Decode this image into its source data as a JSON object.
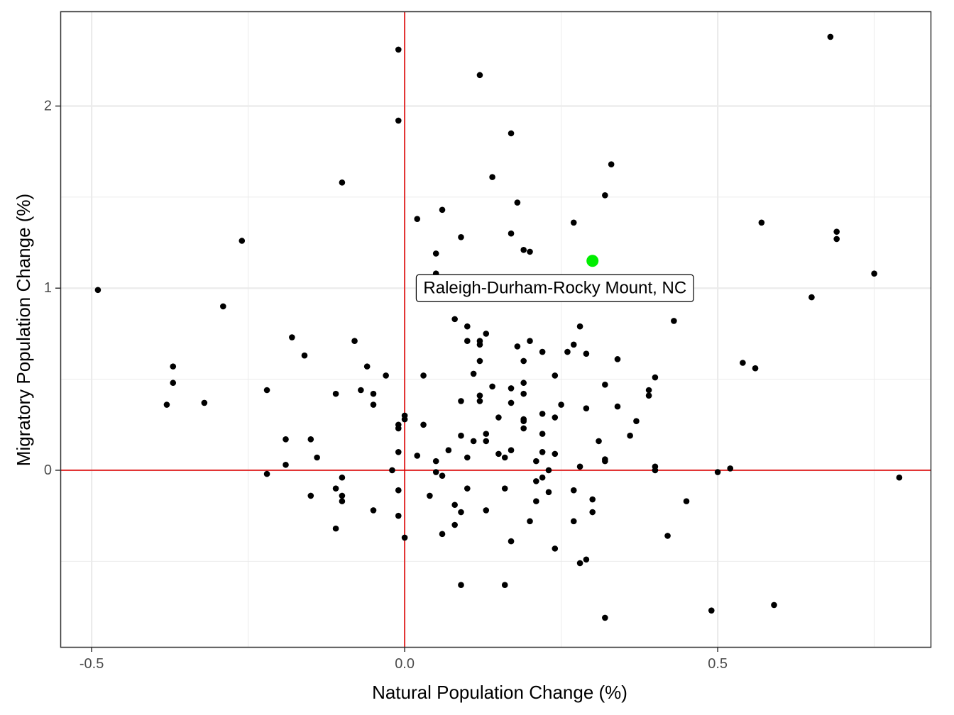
{
  "chart_data": {
    "type": "scatter",
    "title": "",
    "xlabel": "Natural Population Change (%)",
    "ylabel": "Migratory Population Change (%)",
    "xlim": [
      -0.55,
      0.84
    ],
    "ylim": [
      -0.97,
      2.52
    ],
    "x_ticks": [
      {
        "value": -0.5,
        "label": "-0.5"
      },
      {
        "value": 0.0,
        "label": "0.0"
      },
      {
        "value": 0.5,
        "label": "0.5"
      }
    ],
    "y_ticks": [
      {
        "value": 0,
        "label": "0"
      },
      {
        "value": 1,
        "label": "1"
      },
      {
        "value": 2,
        "label": "2"
      }
    ],
    "x_minor": [
      -0.25,
      0.25,
      0.75
    ],
    "y_minor": [
      -0.5,
      0.5,
      1.5
    ],
    "grid": true,
    "reference_lines": {
      "x": 0,
      "y": 0,
      "color": "#e00000"
    },
    "point_color": "#000000",
    "highlight": {
      "x": 0.3,
      "y": 1.15,
      "color": "#00ee00",
      "label": "Raleigh-Durham-Rocky Mount, NC",
      "label_x": 0.24,
      "label_y": 1.0
    },
    "points": [
      [
        -0.49,
        0.99
      ],
      [
        -0.26,
        1.26
      ],
      [
        -0.29,
        0.9
      ],
      [
        -0.38,
        0.36
      ],
      [
        -0.37,
        0.57
      ],
      [
        -0.37,
        0.48
      ],
      [
        -0.32,
        0.37
      ],
      [
        -0.22,
        0.44
      ],
      [
        -0.18,
        0.73
      ],
      [
        -0.16,
        0.63
      ],
      [
        -0.19,
        0.17
      ],
      [
        -0.19,
        0.03
      ],
      [
        -0.22,
        -0.02
      ],
      [
        -0.15,
        0.17
      ],
      [
        -0.14,
        0.07
      ],
      [
        -0.15,
        -0.14
      ],
      [
        -0.11,
        0.42
      ],
      [
        -0.1,
        1.58
      ],
      [
        -0.08,
        0.71
      ],
      [
        -0.07,
        0.44
      ],
      [
        -0.06,
        0.57
      ],
      [
        -0.05,
        0.42
      ],
      [
        -0.05,
        0.36
      ],
      [
        -0.03,
        0.52
      ],
      [
        -0.02,
        0.0
      ],
      [
        -0.01,
        0.23
      ],
      [
        -0.01,
        0.25
      ],
      [
        -0.01,
        0.1
      ],
      [
        -0.01,
        -0.11
      ],
      [
        -0.01,
        -0.25
      ],
      [
        0.0,
        0.28
      ],
      [
        0.0,
        0.3
      ],
      [
        0.0,
        -0.37
      ],
      [
        -0.01,
        2.31
      ],
      [
        -0.01,
        1.92
      ],
      [
        -0.11,
        -0.1
      ],
      [
        -0.1,
        -0.04
      ],
      [
        -0.1,
        -0.14
      ],
      [
        -0.1,
        -0.17
      ],
      [
        -0.11,
        -0.32
      ],
      [
        -0.05,
        -0.22
      ],
      [
        0.02,
        1.38
      ],
      [
        0.06,
        1.43
      ],
      [
        0.05,
        1.19
      ],
      [
        0.05,
        1.08
      ],
      [
        0.09,
        1.28
      ],
      [
        0.12,
        2.17
      ],
      [
        0.14,
        1.61
      ],
      [
        0.17,
        1.85
      ],
      [
        0.18,
        1.47
      ],
      [
        0.17,
        1.3
      ],
      [
        0.19,
        1.21
      ],
      [
        0.2,
        1.2
      ],
      [
        0.27,
        1.36
      ],
      [
        0.32,
        1.51
      ],
      [
        0.33,
        1.68
      ],
      [
        0.08,
        0.83
      ],
      [
        0.1,
        0.79
      ],
      [
        0.1,
        0.71
      ],
      [
        0.12,
        0.71
      ],
      [
        0.12,
        0.69
      ],
      [
        0.13,
        0.75
      ],
      [
        0.12,
        0.6
      ],
      [
        0.11,
        0.53
      ],
      [
        0.14,
        0.46
      ],
      [
        0.12,
        0.41
      ],
      [
        0.12,
        0.38
      ],
      [
        0.09,
        0.38
      ],
      [
        0.03,
        0.52
      ],
      [
        0.03,
        0.25
      ],
      [
        0.02,
        0.08
      ],
      [
        0.05,
        0.05
      ],
      [
        0.05,
        -0.01
      ],
      [
        0.06,
        -0.03
      ],
      [
        0.07,
        0.11
      ],
      [
        0.09,
        0.19
      ],
      [
        0.1,
        0.07
      ],
      [
        0.1,
        -0.1
      ],
      [
        0.08,
        -0.19
      ],
      [
        0.09,
        -0.23
      ],
      [
        0.08,
        -0.3
      ],
      [
        0.06,
        -0.35
      ],
      [
        0.04,
        -0.14
      ],
      [
        0.11,
        0.16
      ],
      [
        0.13,
        0.16
      ],
      [
        0.13,
        0.2
      ],
      [
        0.15,
        0.29
      ],
      [
        0.15,
        0.09
      ],
      [
        0.16,
        0.07
      ],
      [
        0.17,
        0.11
      ],
      [
        0.17,
        0.37
      ],
      [
        0.17,
        0.45
      ],
      [
        0.18,
        0.68
      ],
      [
        0.2,
        0.71
      ],
      [
        0.19,
        0.6
      ],
      [
        0.19,
        0.48
      ],
      [
        0.19,
        0.42
      ],
      [
        0.19,
        0.28
      ],
      [
        0.19,
        0.27
      ],
      [
        0.19,
        0.23
      ],
      [
        0.21,
        0.05
      ],
      [
        0.22,
        0.1
      ],
      [
        0.22,
        0.2
      ],
      [
        0.22,
        0.31
      ],
      [
        0.22,
        0.65
      ],
      [
        0.24,
        0.52
      ],
      [
        0.24,
        0.29
      ],
      [
        0.25,
        0.36
      ],
      [
        0.26,
        0.65
      ],
      [
        0.27,
        0.69
      ],
      [
        0.28,
        0.79
      ],
      [
        0.29,
        0.64
      ],
      [
        0.29,
        0.34
      ],
      [
        0.31,
        0.16
      ],
      [
        0.32,
        0.47
      ],
      [
        0.34,
        0.61
      ],
      [
        0.34,
        0.35
      ],
      [
        0.36,
        0.19
      ],
      [
        0.37,
        0.27
      ],
      [
        0.39,
        0.44
      ],
      [
        0.39,
        0.41
      ],
      [
        0.4,
        0.51
      ],
      [
        0.43,
        0.82
      ],
      [
        0.4,
        0.02
      ],
      [
        0.4,
        0.0
      ],
      [
        0.24,
        0.09
      ],
      [
        0.23,
        0.0
      ],
      [
        0.21,
        -0.06
      ],
      [
        0.22,
        -0.04
      ],
      [
        0.23,
        -0.12
      ],
      [
        0.21,
        -0.17
      ],
      [
        0.2,
        -0.28
      ],
      [
        0.16,
        -0.1
      ],
      [
        0.13,
        -0.22
      ],
      [
        0.09,
        -0.63
      ],
      [
        0.16,
        -0.63
      ],
      [
        0.17,
        -0.39
      ],
      [
        0.24,
        -0.43
      ],
      [
        0.27,
        -0.11
      ],
      [
        0.27,
        -0.28
      ],
      [
        0.28,
        0.02
      ],
      [
        0.28,
        -0.51
      ],
      [
        0.29,
        -0.49
      ],
      [
        0.3,
        -0.16
      ],
      [
        0.3,
        -0.23
      ],
      [
        0.32,
        0.05
      ],
      [
        0.32,
        0.06
      ],
      [
        0.32,
        -0.81
      ],
      [
        0.42,
        -0.36
      ],
      [
        0.45,
        -0.17
      ],
      [
        0.49,
        -0.77
      ],
      [
        0.5,
        -0.01
      ],
      [
        0.52,
        0.01
      ],
      [
        0.54,
        0.59
      ],
      [
        0.56,
        0.56
      ],
      [
        0.57,
        1.36
      ],
      [
        0.59,
        -0.74
      ],
      [
        0.65,
        0.95
      ],
      [
        0.68,
        2.38
      ],
      [
        0.69,
        1.31
      ],
      [
        0.69,
        1.27
      ],
      [
        0.75,
        1.08
      ],
      [
        0.79,
        -0.04
      ]
    ]
  }
}
